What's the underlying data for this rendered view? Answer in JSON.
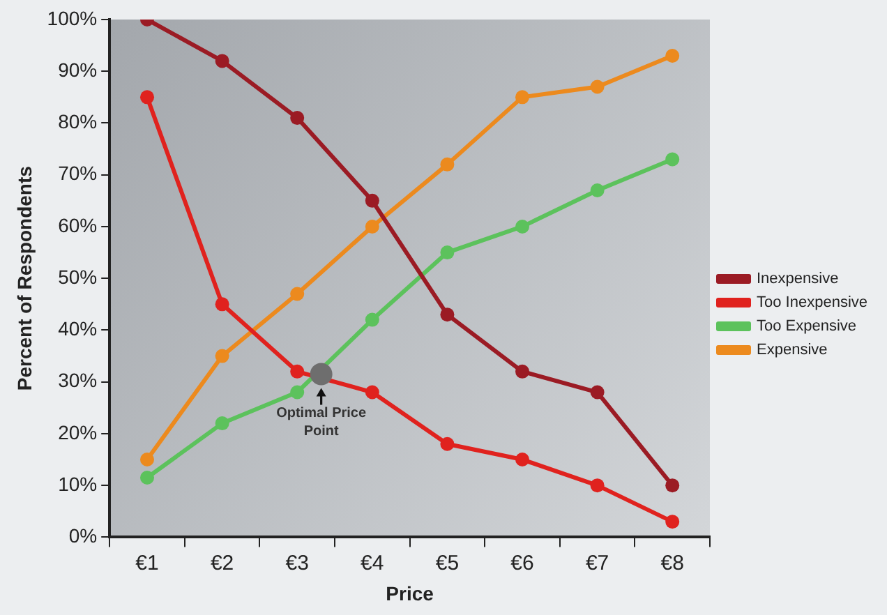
{
  "chart_data": {
    "type": "line",
    "xlabel": "Price",
    "ylabel": "Percent of Respondents",
    "x": [
      1,
      2,
      3,
      4,
      5,
      6,
      7,
      8
    ],
    "xlim": [
      0.5,
      8.5
    ],
    "xticks": [
      {
        "value": 0.5,
        "label": null
      },
      {
        "value": 1,
        "label": "€1"
      },
      {
        "value": 1.5,
        "label": null
      },
      {
        "value": 2,
        "label": "€2"
      },
      {
        "value": 2.5,
        "label": null
      },
      {
        "value": 3,
        "label": "€3"
      },
      {
        "value": 3.5,
        "label": null
      },
      {
        "value": 4,
        "label": "€4"
      },
      {
        "value": 4.5,
        "label": null
      },
      {
        "value": 5,
        "label": "€5"
      },
      {
        "value": 5.5,
        "label": null
      },
      {
        "value": 6,
        "label": "€6"
      },
      {
        "value": 6.5,
        "label": null
      },
      {
        "value": 7,
        "label": "€7"
      },
      {
        "value": 7.5,
        "label": null
      },
      {
        "value": 8,
        "label": "€8"
      },
      {
        "value": 8.5,
        "label": null
      }
    ],
    "ylim": [
      0,
      100
    ],
    "yticks": [
      {
        "value": 0,
        "label": "0%"
      },
      {
        "value": 10,
        "label": "10%"
      },
      {
        "value": 20,
        "label": "20%"
      },
      {
        "value": 30,
        "label": "30%"
      },
      {
        "value": 40,
        "label": "40%"
      },
      {
        "value": 50,
        "label": "50%"
      },
      {
        "value": 60,
        "label": "60%"
      },
      {
        "value": 70,
        "label": "70%"
      },
      {
        "value": 80,
        "label": "80%"
      },
      {
        "value": 90,
        "label": "90%"
      },
      {
        "value": 100,
        "label": "100%"
      }
    ],
    "series": [
      {
        "name": "Inexpensive",
        "color": "#9b1b24",
        "values": [
          100,
          92,
          81,
          65,
          43,
          32,
          28,
          10
        ]
      },
      {
        "name": "Too Inexpensive",
        "color": "#e0221e",
        "values": [
          85,
          45,
          32,
          28,
          18,
          15,
          10,
          3
        ]
      },
      {
        "name": "Too Expensive",
        "color": "#5cc25c",
        "values": [
          11.5,
          22,
          28,
          42,
          55,
          60,
          67,
          73
        ]
      },
      {
        "name": "Expensive",
        "color": "#ec8a1e",
        "values": [
          15,
          35,
          47,
          60,
          72,
          85,
          87,
          93
        ]
      },
      {
        "type": "scatter",
        "color": "#6e6e6e",
        "x": [
          3.32
        ],
        "values": [
          31.5
        ]
      }
    ],
    "annotations": [
      {
        "text": "Optimal Price Point",
        "x": 3.32,
        "y": 31.5
      }
    ],
    "grid": false,
    "legend": "right",
    "marker": "circle",
    "line_style": "solid"
  }
}
